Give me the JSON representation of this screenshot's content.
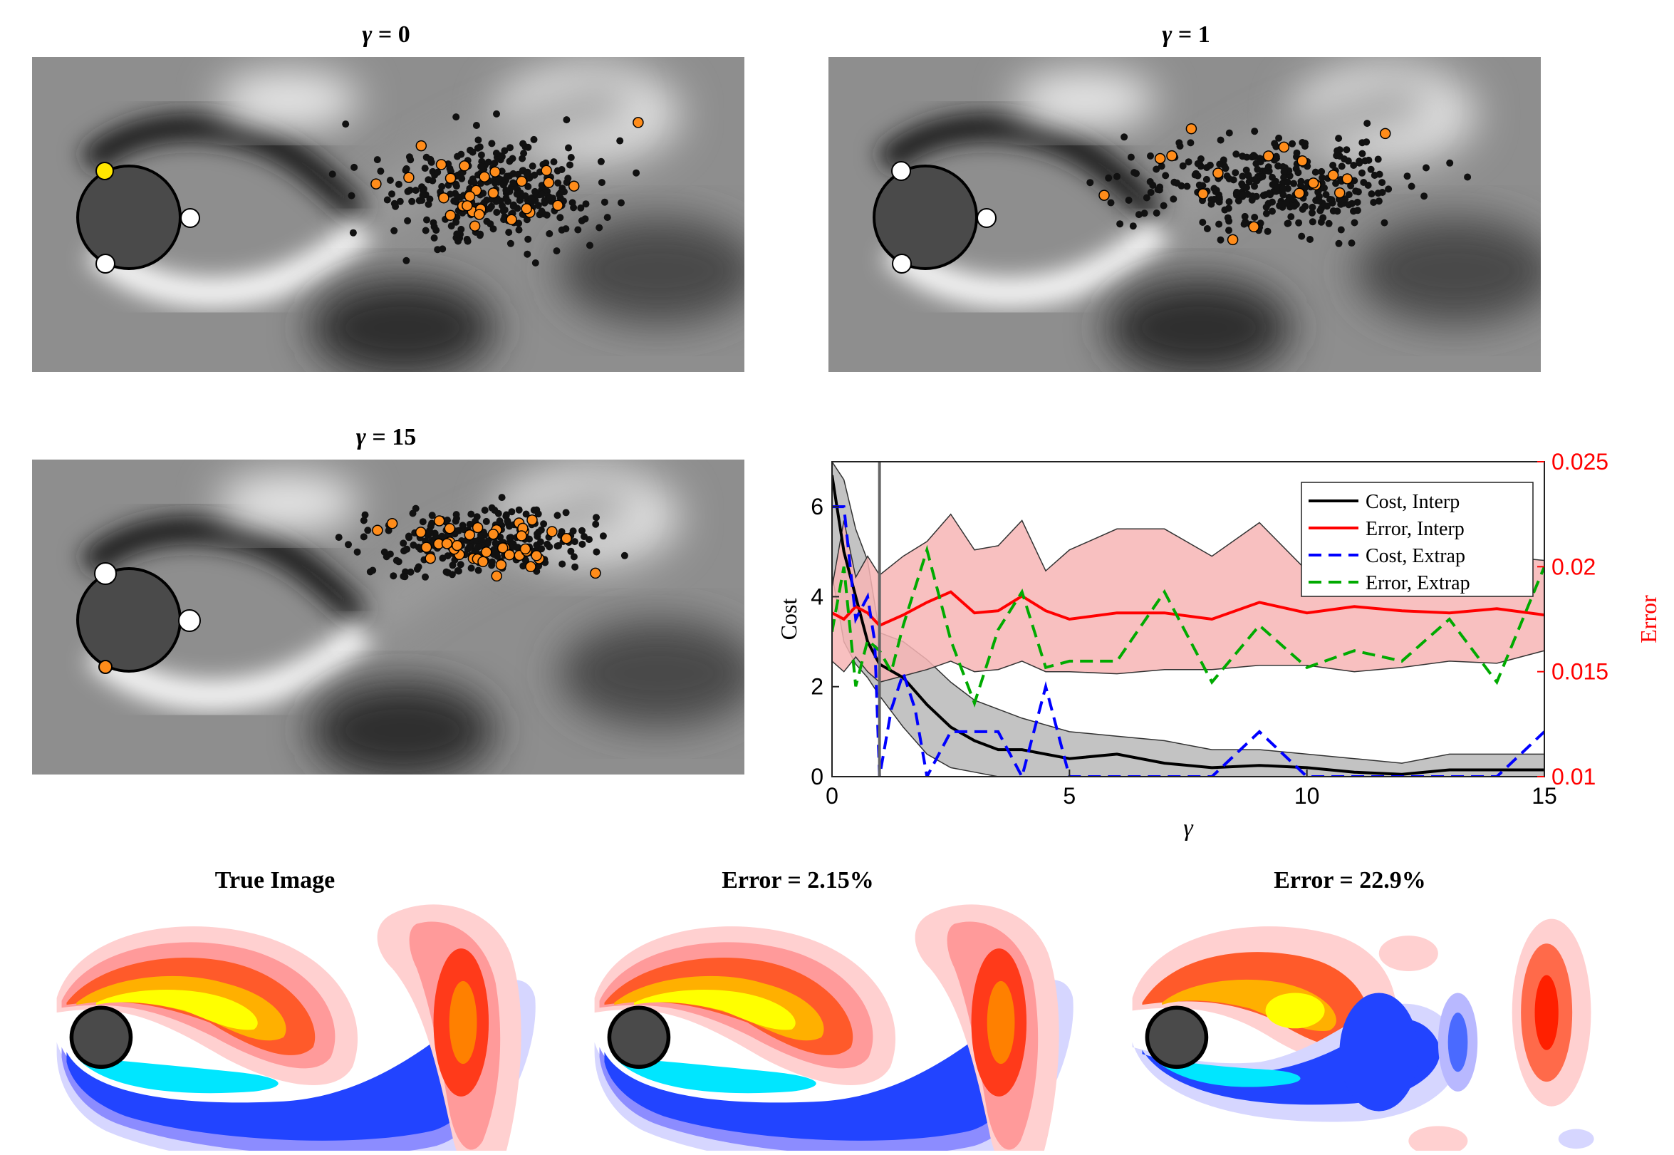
{
  "panels": {
    "top_left": {
      "gamma_symbol": "γ",
      "rest": " = 0"
    },
    "top_right": {
      "gamma_symbol": "γ",
      "rest": " = 1"
    },
    "mid_left": {
      "gamma_symbol": "γ",
      "rest": " = 15"
    }
  },
  "bottom": {
    "true_title": "True Image",
    "mid_title": "Error = 2.15%",
    "right_title": "Error = 22.9%"
  },
  "colors": {
    "cost_interp": "#000000",
    "error_interp": "#ff0000",
    "cost_extrap": "#0000ff",
    "error_extrap": "#00aa00",
    "error_band": "#f7b5b5",
    "cost_band": "#b9b9b9",
    "sensor_black": "#111111",
    "sensor_orange": "#ff8c1a",
    "sensor_yellow": "#ffe600"
  },
  "chart_data": {
    "type": "line",
    "xlabel": "γ",
    "ylabel_left": "Cost",
    "ylabel_right": "Error",
    "xlim": [
      0,
      15
    ],
    "ylim_left": [
      0,
      7
    ],
    "ylim_right": [
      0.01,
      0.025
    ],
    "x_ticks": [
      "0",
      "5",
      "10",
      "15"
    ],
    "y_ticks_left": [
      "0",
      "2",
      "4",
      "6"
    ],
    "y_ticks_right": [
      "0.01",
      "0.015",
      "0.02",
      "0.025"
    ],
    "vline_x": 1,
    "legend": [
      "Cost, Interp",
      "Error, Interp",
      "Cost, Extrap",
      "Error, Extrap"
    ],
    "series": [
      {
        "name": "Cost, Interp",
        "axis": "left",
        "style": "solid",
        "x": [
          0,
          0.25,
          0.5,
          0.75,
          1,
          1.5,
          2,
          2.5,
          3,
          3.5,
          4,
          5,
          6,
          7,
          8,
          9,
          10,
          11,
          12,
          13,
          14,
          15
        ],
        "y": [
          6.7,
          5.0,
          4.0,
          3.0,
          2.5,
          2.2,
          1.6,
          1.1,
          0.8,
          0.6,
          0.6,
          0.4,
          0.5,
          0.3,
          0.2,
          0.25,
          0.2,
          0.1,
          0.05,
          0.15,
          0.15,
          0.15
        ]
      },
      {
        "name": "Cost, Interp band",
        "axis": "left",
        "band": true,
        "x": [
          0,
          0.25,
          0.5,
          0.75,
          1,
          1.5,
          2,
          2.5,
          3,
          3.5,
          4,
          5,
          6,
          7,
          8,
          9,
          10,
          11,
          12,
          13,
          14,
          15
        ],
        "upper": [
          7.0,
          6.6,
          5.5,
          4.8,
          3.2,
          3.0,
          2.6,
          2.1,
          1.7,
          1.5,
          1.3,
          1.0,
          0.9,
          0.8,
          0.6,
          0.6,
          0.5,
          0.4,
          0.3,
          0.5,
          0.5,
          0.5
        ],
        "lower": [
          4.5,
          3.0,
          2.5,
          2.2,
          1.8,
          1.1,
          0.5,
          0.2,
          0.1,
          0.0,
          0.0,
          0.0,
          0.0,
          0.0,
          0.0,
          0.0,
          0.0,
          0.0,
          0.0,
          0.0,
          0.0,
          0.0
        ]
      },
      {
        "name": "Error, Interp",
        "axis": "right",
        "style": "solid",
        "x": [
          0,
          0.25,
          0.5,
          0.75,
          1,
          1.5,
          2,
          2.5,
          3,
          3.5,
          4,
          4.5,
          5,
          6,
          7,
          8,
          9,
          10,
          11,
          12,
          13,
          14,
          15
        ],
        "y": [
          0.0178,
          0.0175,
          0.0181,
          0.0178,
          0.0172,
          0.0177,
          0.0183,
          0.0188,
          0.0178,
          0.0179,
          0.0186,
          0.0179,
          0.0175,
          0.0178,
          0.0178,
          0.0175,
          0.0183,
          0.0178,
          0.0181,
          0.0179,
          0.0178,
          0.018,
          0.0177
        ]
      },
      {
        "name": "Error, Interp band",
        "axis": "right",
        "band": true,
        "x": [
          0,
          0.25,
          0.5,
          0.75,
          1,
          1.5,
          2,
          2.5,
          3,
          3.5,
          4,
          4.5,
          5,
          6,
          7,
          8,
          9,
          10,
          11,
          12,
          13,
          14,
          15
        ],
        "upper": [
          0.019,
          0.0222,
          0.0195,
          0.0205,
          0.0196,
          0.0205,
          0.0212,
          0.0225,
          0.0208,
          0.021,
          0.0222,
          0.0198,
          0.0208,
          0.0218,
          0.0218,
          0.0205,
          0.0221,
          0.0198,
          0.0209,
          0.0206,
          0.0212,
          0.0205,
          0.0203
        ],
        "lower": [
          0.0155,
          0.015,
          0.0157,
          0.015,
          0.0145,
          0.0148,
          0.0151,
          0.0155,
          0.015,
          0.0151,
          0.0155,
          0.015,
          0.015,
          0.0149,
          0.0151,
          0.0151,
          0.0153,
          0.0153,
          0.015,
          0.0152,
          0.0155,
          0.0154,
          0.016
        ]
      },
      {
        "name": "Cost, Extrap",
        "axis": "left",
        "style": "dashed",
        "x": [
          0,
          0.25,
          0.5,
          0.75,
          0.9,
          1,
          1.25,
          1.5,
          1.75,
          2,
          2.5,
          3,
          3.5,
          4,
          4.5,
          5,
          6,
          7,
          8,
          9,
          10,
          11,
          12,
          13,
          14,
          15
        ],
        "y": [
          6.0,
          6.0,
          3.5,
          4.0,
          3.0,
          0.0,
          1.5,
          2.3,
          1.5,
          0.0,
          1.0,
          1.0,
          1.0,
          0.0,
          2.0,
          0.0,
          0.0,
          0.0,
          0.0,
          1.0,
          0.0,
          0.0,
          0.0,
          0.0,
          0.0,
          1.0
        ]
      },
      {
        "name": "Error, Extrap",
        "axis": "right",
        "style": "dashed",
        "x": [
          0,
          0.25,
          0.5,
          0.75,
          1,
          1.25,
          1.5,
          2,
          2.5,
          3,
          3.5,
          4,
          4.5,
          5,
          6,
          7,
          8,
          9,
          10,
          11,
          12,
          13,
          14,
          15
        ],
        "y": [
          0.0169,
          0.02,
          0.0143,
          0.0165,
          0.016,
          0.015,
          0.0172,
          0.0208,
          0.0165,
          0.0135,
          0.017,
          0.0188,
          0.0152,
          0.0155,
          0.0155,
          0.0188,
          0.0145,
          0.0172,
          0.0152,
          0.016,
          0.0155,
          0.0175,
          0.0145,
          0.02
        ]
      }
    ]
  }
}
